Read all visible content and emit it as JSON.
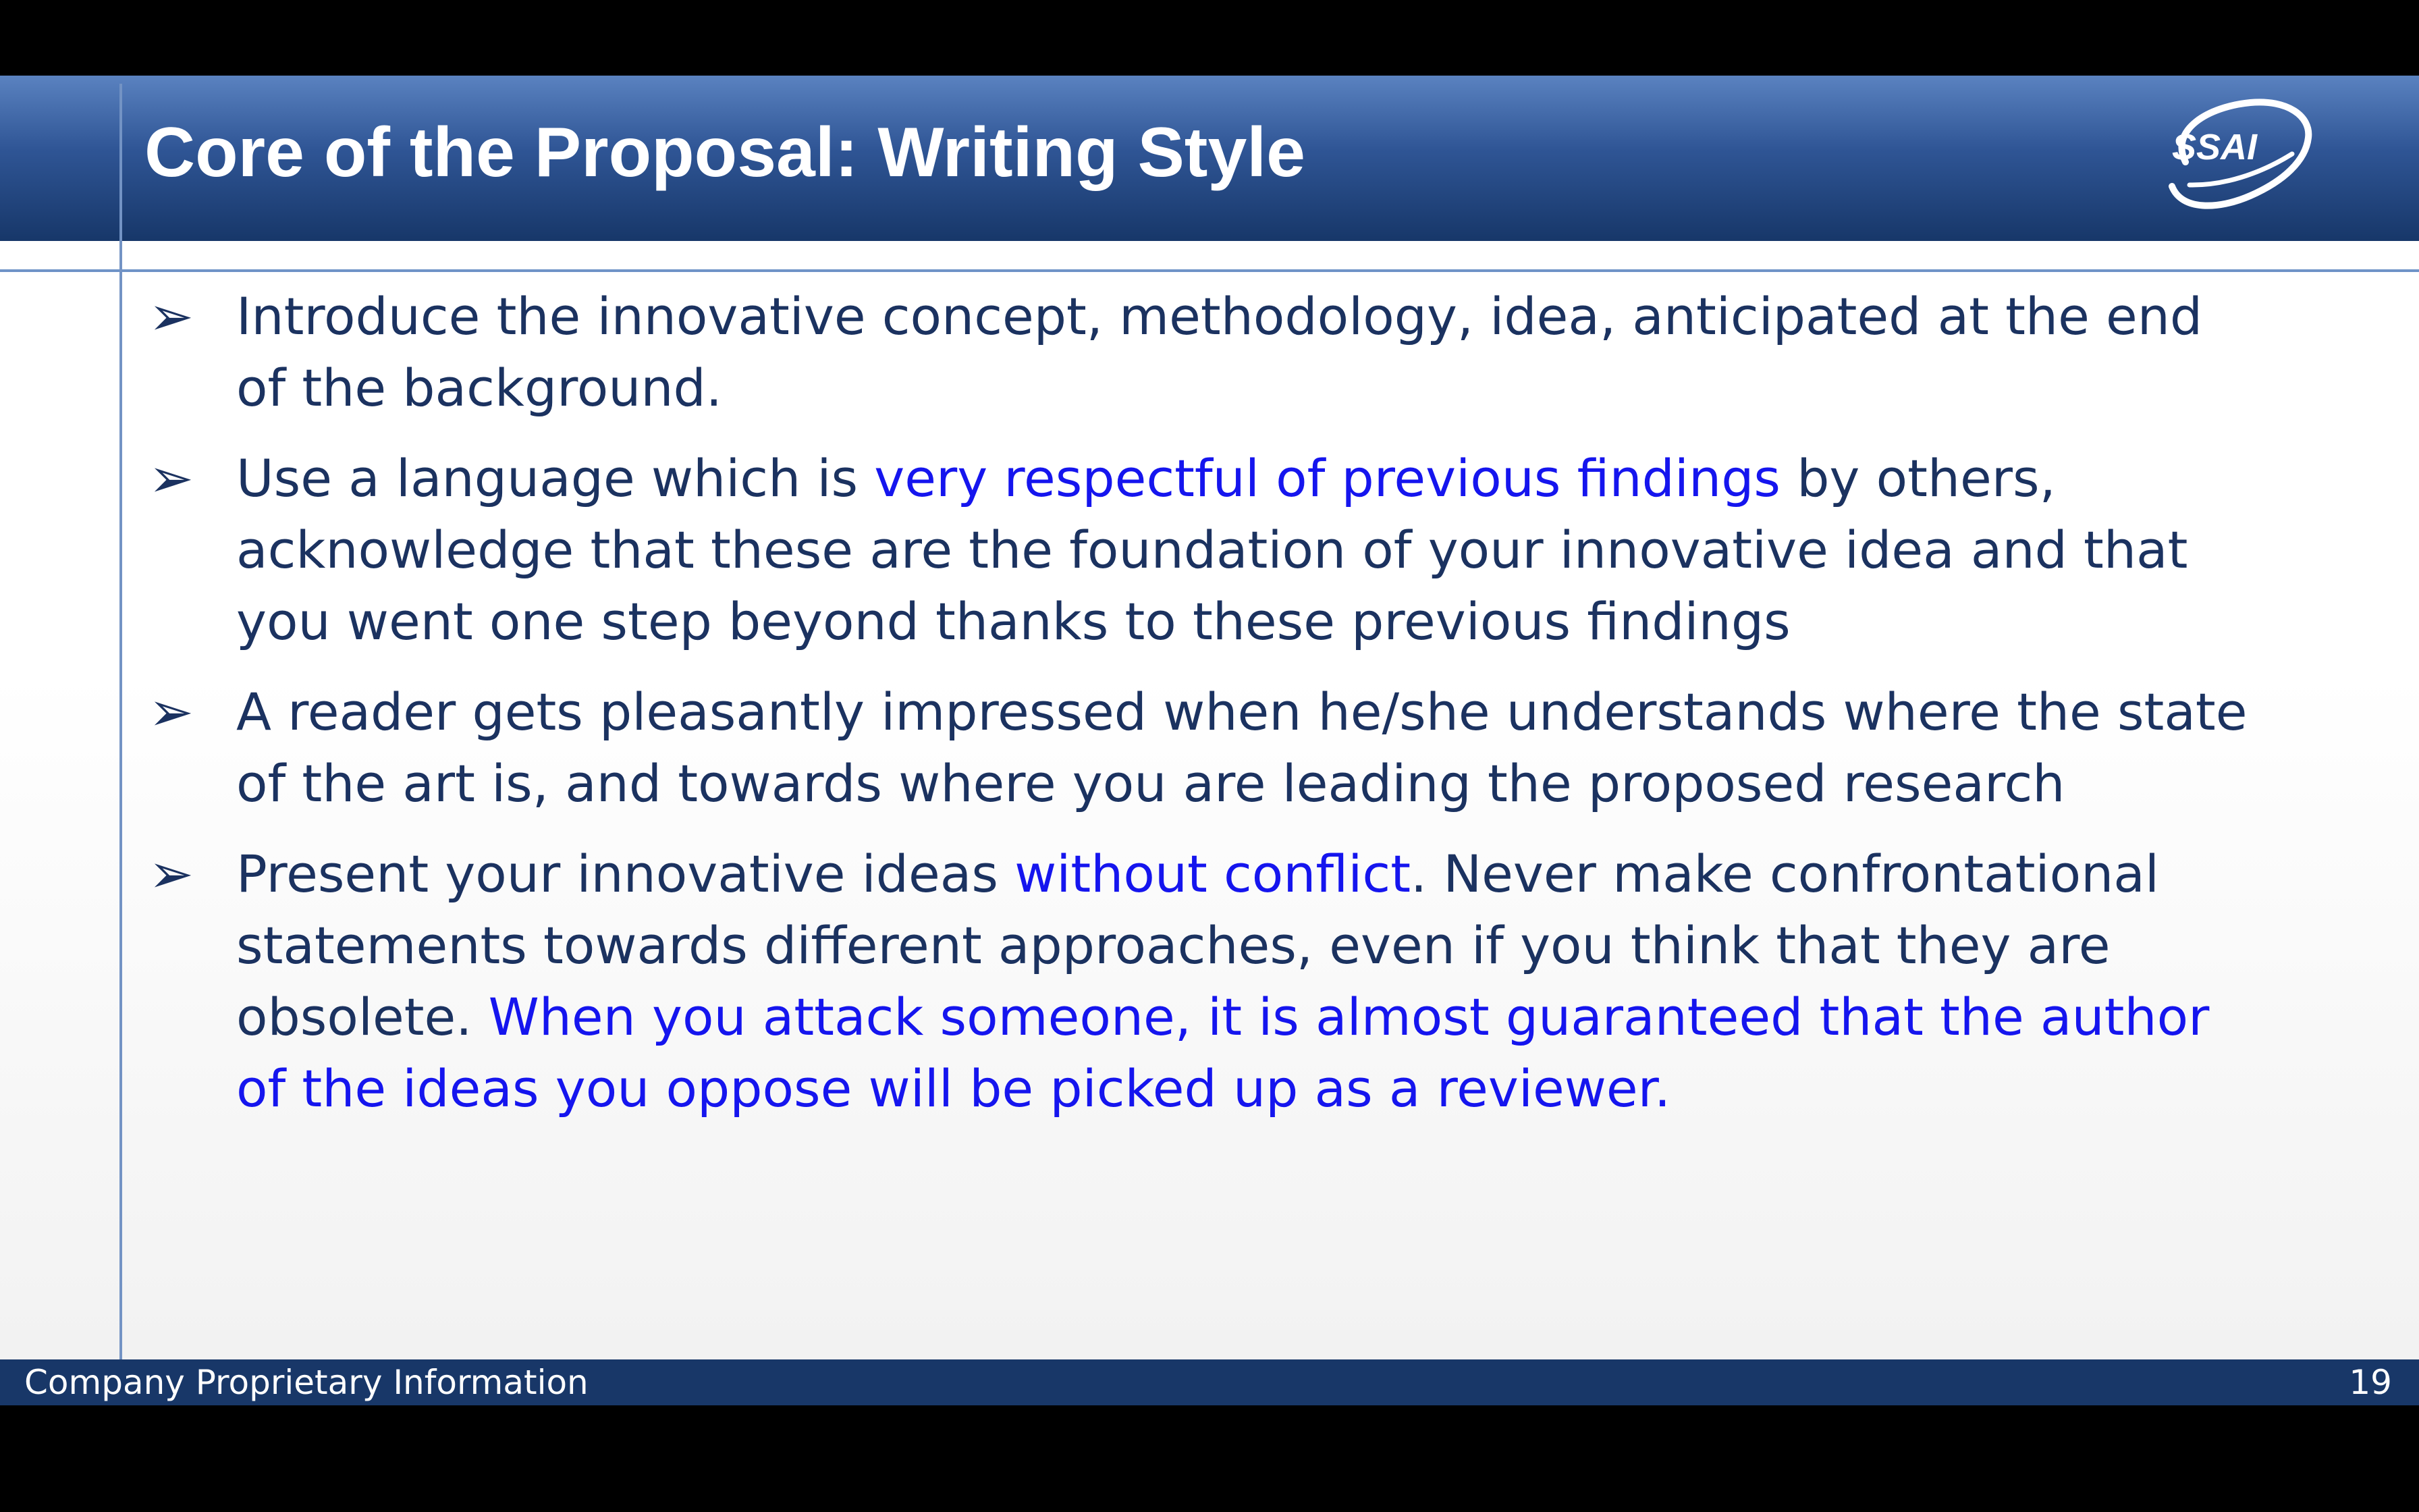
{
  "slide": {
    "title": "Core of the Proposal: Writing Style",
    "logo_text": "SSAI",
    "bullets": [
      {
        "parts": [
          {
            "text": "Introduce the innovative concept, methodology, idea, anticipated at the end of the background."
          }
        ]
      },
      {
        "parts": [
          {
            "text": "Use a language which is "
          },
          {
            "text": "very respectful of previous findings"
          },
          {
            "text": " by others, acknowledge that these are the foundation of your innovative idea and that you went one step beyond thanks to these previous findings"
          }
        ]
      },
      {
        "parts": [
          {
            "text": "A reader gets pleasantly impressed when he/she understands where the state of the art is, and towards where you are leading the proposed research"
          }
        ]
      },
      {
        "parts": [
          {
            "text": "Present your innovative ideas "
          },
          {
            "text": "without conflict"
          },
          {
            "text": ". Never make confrontational statements towards different approaches, even if you think that they are obsolete. "
          },
          {
            "text": "When you attack someone, it is almost guaranteed that the author of the ideas you oppose will be picked up as a reviewer."
          }
        ]
      }
    ]
  },
  "footer": {
    "left_text": "Company Proprietary Information",
    "page_number": "19"
  },
  "colors": {
    "header_blue": "#2f5595",
    "footer_blue": "#183768",
    "body_text": "#1b3260",
    "emphasis_blue": "#1515ee"
  },
  "icons": {
    "bullet_marker": "arrowhead-bullet-icon",
    "logo": "ssai-logo-icon"
  }
}
